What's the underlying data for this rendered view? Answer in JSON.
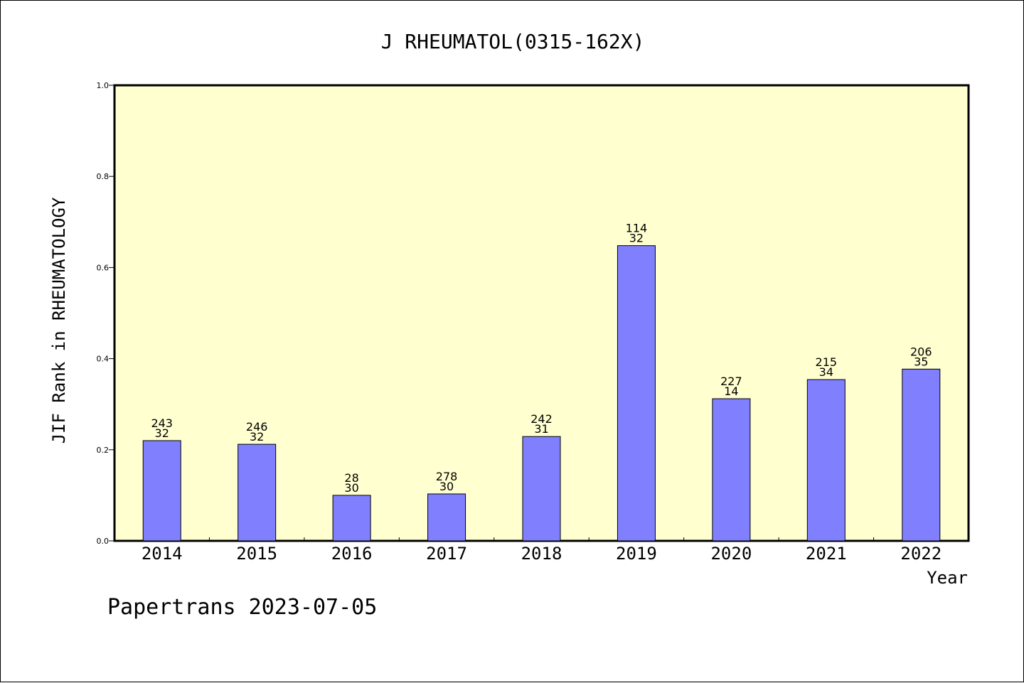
{
  "chart_data": {
    "type": "bar",
    "title": "J RHEUMATOL(0315-162X)",
    "xlabel": "Year",
    "ylabel": "JIF Rank in RHEUMATOLOGY",
    "ylim": [
      0.0,
      1.0
    ],
    "yticks": [
      "0.0",
      "0.2",
      "0.4",
      "0.6",
      "0.8",
      "1.0"
    ],
    "categories": [
      "2014",
      "2015",
      "2016",
      "2017",
      "2018",
      "2019",
      "2020",
      "2021",
      "2022"
    ],
    "values": [
      0.22,
      0.212,
      0.1,
      0.103,
      0.229,
      0.648,
      0.312,
      0.354,
      0.377
    ],
    "label_top": [
      "243",
      "246",
      "28",
      "278",
      "242",
      "114",
      "227",
      "215",
      "206"
    ],
    "label_bottom": [
      "32",
      "32",
      "30",
      "30",
      "31",
      "32",
      "14",
      "34",
      "35"
    ],
    "grid": false,
    "colors": {
      "plot_bg": "#ffffd0",
      "bar": "#8080ff",
      "bar_edge": "#000000"
    }
  },
  "footer": "Papertrans 2023-07-05"
}
